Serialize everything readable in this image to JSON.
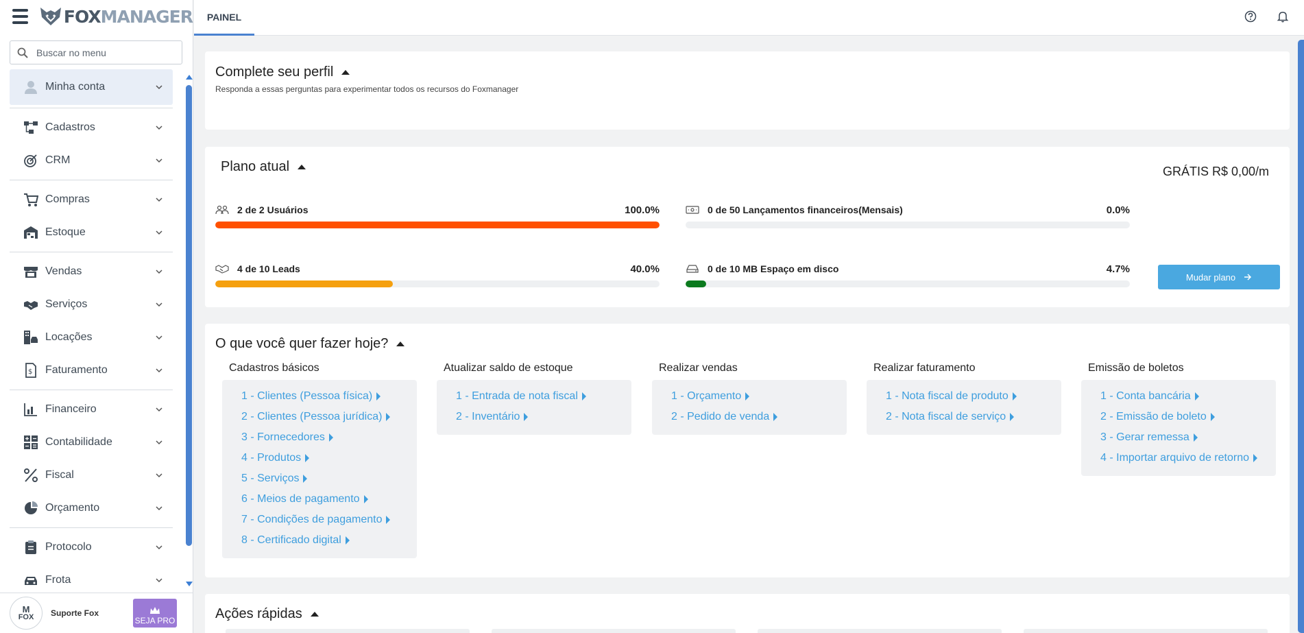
{
  "brand": {
    "name_part1": "FOX",
    "name_part2": "MANAGER"
  },
  "search": {
    "placeholder": "Buscar no menu"
  },
  "sidebar": {
    "items": [
      {
        "label": "Minha conta",
        "icon": "user-icon"
      },
      {
        "label": "Cadastros",
        "icon": "hierarchy-icon"
      },
      {
        "label": "CRM",
        "icon": "target-icon"
      },
      {
        "label": "Compras",
        "icon": "cart-icon"
      },
      {
        "label": "Estoque",
        "icon": "warehouse-icon"
      },
      {
        "label": "Vendas",
        "icon": "store-icon"
      },
      {
        "label": "Serviços",
        "icon": "handshake-icon"
      },
      {
        "label": "Locações",
        "icon": "building-car-icon"
      },
      {
        "label": "Faturamento",
        "icon": "invoice-icon"
      },
      {
        "label": "Financeiro",
        "icon": "finance-chart-icon"
      },
      {
        "label": "Contabilidade",
        "icon": "calculator-icon"
      },
      {
        "label": "Fiscal",
        "icon": "percent-icon"
      },
      {
        "label": "Orçamento",
        "icon": "pie-chart-icon"
      },
      {
        "label": "Protocolo",
        "icon": "clipboard-icon"
      },
      {
        "label": "Frota",
        "icon": "car-icon"
      }
    ]
  },
  "footer": {
    "avatar_top": "M",
    "avatar_bottom": "FOX",
    "support_name": "Suporte Fox",
    "pro_label": "SEJA PRO"
  },
  "topbar": {
    "tab": "PAINEL"
  },
  "profile": {
    "title": "Complete seu perfil",
    "subtitle": "Responda a essas perguntas para experimentar todos os recursos do Foxmanager"
  },
  "plan": {
    "title": "Plano atual",
    "price": "GRÁTIS R$ 0,00/m",
    "button": "Mudar plano",
    "usage": [
      {
        "label": "2 de 2 Usuários",
        "percent_label": "100.0%",
        "percent": 100.0,
        "color": "#ff5000",
        "icon": "users-icon"
      },
      {
        "label": "0 de 50 Lançamentos financeiros(Mensais)",
        "percent_label": "0.0%",
        "percent": 0.0,
        "color": "#4a82d0",
        "icon": "money-icon"
      },
      {
        "label": "4 de 10 Leads",
        "percent_label": "40.0%",
        "percent": 40.0,
        "color": "#f5a00f",
        "icon": "handshake-icon"
      },
      {
        "label": "0 de 10 MB Espaço em disco",
        "percent_label": "4.7%",
        "percent": 4.7,
        "color": "#0b7a1e",
        "icon": "hard-disk-icon"
      }
    ]
  },
  "todo": {
    "title": "O que você quer fazer hoje?",
    "columns": [
      {
        "title": "Cadastros básicos",
        "links": [
          "1 - Clientes (Pessoa física)",
          "2 - Clientes (Pessoa jurídica)",
          "3 - Fornecedores",
          "4 - Produtos",
          "5 - Serviços",
          "6 - Meios de pagamento",
          "7 - Condições de pagamento",
          "8 - Certificado digital"
        ]
      },
      {
        "title": "Atualizar saldo de estoque",
        "links": [
          "1 - Entrada de nota fiscal",
          "2 - Inventário"
        ]
      },
      {
        "title": "Realizar vendas",
        "links": [
          "1 - Orçamento",
          "2 - Pedido de venda"
        ]
      },
      {
        "title": "Realizar faturamento",
        "links": [
          "1 - Nota fiscal de produto",
          "2 - Nota fiscal de serviço"
        ]
      },
      {
        "title": "Emissão de boletos",
        "links": [
          "1 - Conta bancária",
          "2 - Emissão de boleto",
          "3 - Gerar remessa",
          "4 - Importar arquivo de retorno"
        ]
      }
    ]
  },
  "quick": {
    "title": "Ações rápidas"
  }
}
